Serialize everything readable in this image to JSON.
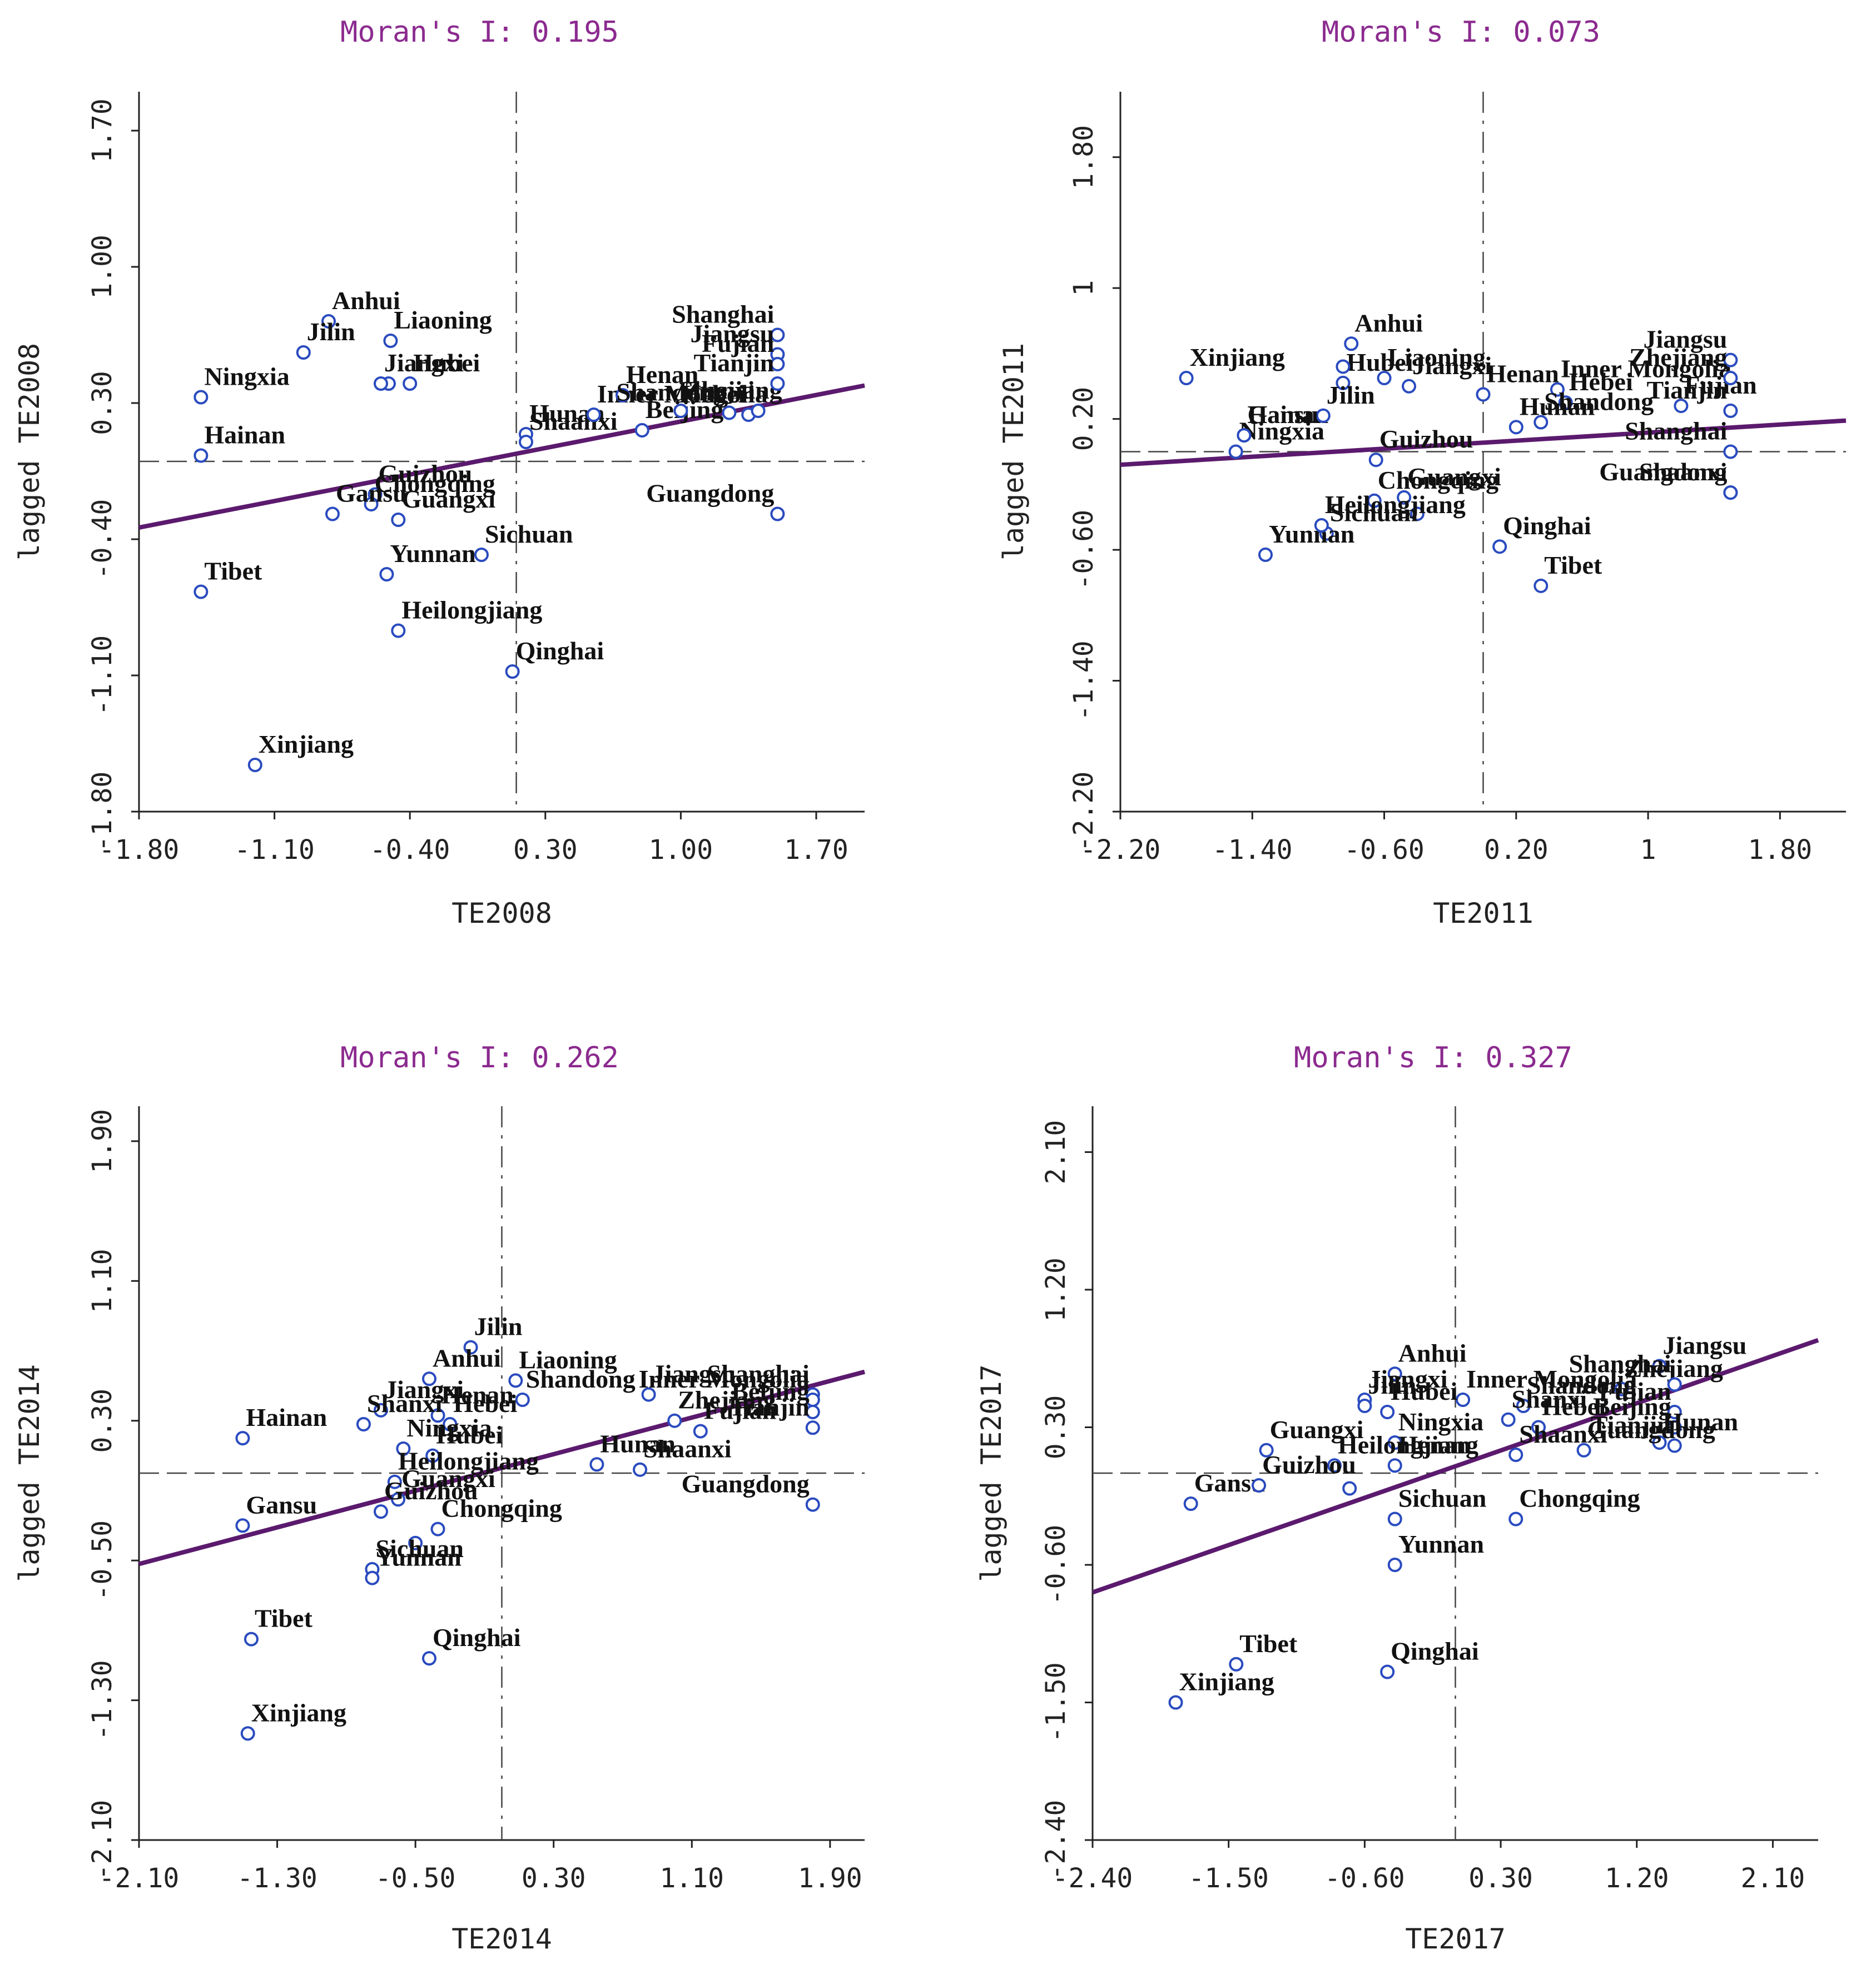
{
  "chart_data": [
    {
      "type": "scatter",
      "title": "Moran's I: 0.195",
      "xlabel": "TE2008",
      "ylabel": "lagged TE2008",
      "xlim": [
        -1.8,
        1.95
      ],
      "ylim": [
        -1.8,
        1.9
      ],
      "xticks": [
        "-1.80",
        "-1.10",
        "-0.40",
        "0.30",
        "1.00",
        "1.70"
      ],
      "yticks": [
        "-1.80",
        "-1.10",
        "-0.40",
        "0.30",
        "1.00",
        "1.70"
      ],
      "mean_x": 0.15,
      "mean_y": 0.0,
      "fit": [
        [
          -1.8,
          -0.34
        ],
        [
          1.95,
          0.39
        ]
      ],
      "points": [
        {
          "name": "Anhui",
          "x": -0.82,
          "y": 0.72
        },
        {
          "name": "Jilin",
          "x": -0.95,
          "y": 0.56
        },
        {
          "name": "Liaoning",
          "x": -0.5,
          "y": 0.62
        },
        {
          "name": "Hubei",
          "x": -0.4,
          "y": 0.4
        },
        {
          "name": "",
          "x": -0.51,
          "y": 0.4
        },
        {
          "name": "Ningxia",
          "x": -1.48,
          "y": 0.33
        },
        {
          "name": "Jiangxi",
          "x": -0.55,
          "y": 0.4
        },
        {
          "name": "Hainan",
          "x": -1.48,
          "y": 0.03
        },
        {
          "name": "Hunan",
          "x": 0.2,
          "y": 0.14
        },
        {
          "name": "Shaanxi",
          "x": 0.2,
          "y": 0.1
        },
        {
          "name": "Inner Mongolia",
          "x": 0.55,
          "y": 0.24
        },
        {
          "name": "Henan",
          "x": 0.7,
          "y": 0.34
        },
        {
          "name": "Beijing",
          "x": 0.8,
          "y": 0.16
        },
        {
          "name": "Zhejiang",
          "x": 1.0,
          "y": 0.26
        },
        {
          "name": "Shandong",
          "x": 1.25,
          "y": 0.25
        },
        {
          "name": "Hebei",
          "x": 1.35,
          "y": 0.24
        },
        {
          "name": "Shanxi",
          "x": 1.4,
          "y": 0.26
        },
        {
          "name": "Shanghai",
          "x": 1.5,
          "y": 0.65
        },
        {
          "name": "Jiangsu",
          "x": 1.5,
          "y": 0.55
        },
        {
          "name": "Fujian",
          "x": 1.5,
          "y": 0.5
        },
        {
          "name": "Tianjin",
          "x": 1.5,
          "y": 0.4
        },
        {
          "name": "Guangdong",
          "x": 1.5,
          "y": -0.27
        },
        {
          "name": "Guizhou",
          "x": -0.58,
          "y": -0.17
        },
        {
          "name": "Chongqing",
          "x": -0.6,
          "y": -0.22
        },
        {
          "name": "Gansu",
          "x": -0.8,
          "y": -0.27
        },
        {
          "name": "Guangxi",
          "x": -0.46,
          "y": -0.3
        },
        {
          "name": "Sichuan",
          "x": -0.03,
          "y": -0.48
        },
        {
          "name": "Yunnan",
          "x": -0.52,
          "y": -0.58
        },
        {
          "name": "Tibet",
          "x": -1.48,
          "y": -0.67
        },
        {
          "name": "Heilongjiang",
          "x": -0.46,
          "y": -0.87
        },
        {
          "name": "Qinghai",
          "x": 0.13,
          "y": -1.08
        },
        {
          "name": "Xinjiang",
          "x": -1.2,
          "y": -1.56
        }
      ]
    },
    {
      "type": "scatter",
      "title": "Moran's I: 0.073",
      "xlabel": "TE2011",
      "ylabel": "lagged TE2011",
      "xlim": [
        -2.2,
        2.2
      ],
      "ylim": [
        -2.2,
        2.2
      ],
      "xticks": [
        "-2.20",
        "-1.40",
        "-0.60",
        "0.20",
        "1",
        "1.80"
      ],
      "yticks": [
        "-2.20",
        "-1.40",
        "-0.60",
        "0.20",
        "1",
        "1.80"
      ],
      "mean_x": 0.0,
      "mean_y": 0.0,
      "fit": [
        [
          -2.2,
          -0.08
        ],
        [
          2.2,
          0.19
        ]
      ],
      "points": [
        {
          "name": "Anhui",
          "x": -0.8,
          "y": 0.66
        },
        {
          "name": "Liaoning",
          "x": -0.6,
          "y": 0.45
        },
        {
          "name": "Xinjiang",
          "x": -1.8,
          "y": 0.45
        },
        {
          "name": "Hubei",
          "x": -0.85,
          "y": 0.42
        },
        {
          "name": "",
          "x": -0.85,
          "y": 0.52
        },
        {
          "name": "Hainan",
          "x": -1.45,
          "y": 0.1
        },
        {
          "name": "Jilin",
          "x": -0.97,
          "y": 0.22
        },
        {
          "name": "Ningxia",
          "x": -1.5,
          "y": 0.0
        },
        {
          "name": "Jiangxi",
          "x": -0.45,
          "y": 0.4
        },
        {
          "name": "Henan",
          "x": 0.0,
          "y": 0.35
        },
        {
          "name": "Inner Mongolia",
          "x": 0.45,
          "y": 0.38
        },
        {
          "name": "Hebei",
          "x": 0.5,
          "y": 0.3
        },
        {
          "name": "Shandong",
          "x": 0.35,
          "y": 0.18
        },
        {
          "name": "Hunan",
          "x": 0.2,
          "y": 0.15
        },
        {
          "name": "Fujian",
          "x": 1.2,
          "y": 0.28
        },
        {
          "name": "Jiangsu",
          "x": 1.5,
          "y": 0.56
        },
        {
          "name": "Zhejiang",
          "x": 1.5,
          "y": 0.45
        },
        {
          "name": "Tianjin",
          "x": 1.5,
          "y": 0.25
        },
        {
          "name": "Shanghai",
          "x": 1.5,
          "y": 0.0
        },
        {
          "name": "Shaanxi",
          "x": 1.5,
          "y": -0.25
        },
        {
          "name": "Guangdong",
          "x": 1.5,
          "y": -0.25
        },
        {
          "name": "Gansu",
          "x": -1.45,
          "y": 0.1
        },
        {
          "name": "Guizhou",
          "x": -0.65,
          "y": -0.05
        },
        {
          "name": "Guangxi",
          "x": -0.48,
          "y": -0.28
        },
        {
          "name": "Chongqing",
          "x": -0.66,
          "y": -0.3
        },
        {
          "name": "",
          "x": -0.4,
          "y": -0.38
        },
        {
          "name": "Sichuan",
          "x": -0.95,
          "y": -0.5
        },
        {
          "name": "Yunnan",
          "x": -1.32,
          "y": -0.63
        },
        {
          "name": "Heilongjiang",
          "x": -0.98,
          "y": -0.45
        },
        {
          "name": "Qinghai",
          "x": 0.1,
          "y": -0.58
        },
        {
          "name": "Tibet",
          "x": 0.35,
          "y": -0.82
        }
      ]
    },
    {
      "type": "scatter",
      "title": "Moran's I: 0.262",
      "xlabel": "TE2014",
      "ylabel": "lagged TE2014",
      "xlim": [
        -2.1,
        2.1
      ],
      "ylim": [
        -2.1,
        2.1
      ],
      "xticks": [
        "-2.10",
        "-1.30",
        "-0.50",
        "0.30",
        "1.10",
        "1.90"
      ],
      "yticks": [
        "-2.10",
        "-1.30",
        "-0.50",
        "0.30",
        "1.10",
        "1.90"
      ],
      "mean_x": 0.0,
      "mean_y": 0.0,
      "fit": [
        [
          -2.1,
          -0.52
        ],
        [
          2.1,
          0.58
        ]
      ],
      "points": [
        {
          "name": "Jilin",
          "x": -0.18,
          "y": 0.72
        },
        {
          "name": "Anhui",
          "x": -0.42,
          "y": 0.54
        },
        {
          "name": "Liaoning",
          "x": 0.08,
          "y": 0.53
        },
        {
          "name": "Jiangsu",
          "x": 0.85,
          "y": 0.45
        },
        {
          "name": "Shanghai",
          "x": 1.8,
          "y": 0.45
        },
        {
          "name": "Jiangxi",
          "x": -0.7,
          "y": 0.36
        },
        {
          "name": "Henan",
          "x": -0.37,
          "y": 0.33
        },
        {
          "name": "Shandong",
          "x": 0.12,
          "y": 0.42
        },
        {
          "name": "Zhejiang",
          "x": 1.0,
          "y": 0.3
        },
        {
          "name": "Inner Mongolia",
          "x": 1.8,
          "y": 0.42
        },
        {
          "name": "Shanxi",
          "x": -0.8,
          "y": 0.28
        },
        {
          "name": "Hebei",
          "x": -0.3,
          "y": 0.28
        },
        {
          "name": "Beijing",
          "x": 1.8,
          "y": 0.35
        },
        {
          "name": "Hainan",
          "x": -1.5,
          "y": 0.2
        },
        {
          "name": "Ningxia",
          "x": -0.57,
          "y": 0.14
        },
        {
          "name": "Hubei",
          "x": -0.4,
          "y": 0.1
        },
        {
          "name": "Fujian",
          "x": 1.15,
          "y": 0.24
        },
        {
          "name": "Tianjin",
          "x": 1.8,
          "y": 0.26
        },
        {
          "name": "Hunan",
          "x": 0.55,
          "y": 0.05
        },
        {
          "name": "Shaanxi",
          "x": 0.8,
          "y": 0.02
        },
        {
          "name": "Heilongjiang",
          "x": -0.62,
          "y": -0.05
        },
        {
          "name": "Guangxi",
          "x": -0.6,
          "y": -0.15
        },
        {
          "name": "Gansu",
          "x": -1.5,
          "y": -0.3
        },
        {
          "name": "Guizhou",
          "x": -0.7,
          "y": -0.22
        },
        {
          "name": "Chongqing",
          "x": -0.37,
          "y": -0.32
        },
        {
          "name": "",
          "x": -0.5,
          "y": -0.4
        },
        {
          "name": "Guangdong",
          "x": 1.8,
          "y": -0.18
        },
        {
          "name": "Sichuan",
          "x": -0.75,
          "y": -0.55
        },
        {
          "name": "Yunnan",
          "x": -0.75,
          "y": -0.6
        },
        {
          "name": "Tibet",
          "x": -1.45,
          "y": -0.95
        },
        {
          "name": "Qinghai",
          "x": -0.42,
          "y": -1.06
        },
        {
          "name": "Xinjiang",
          "x": -1.47,
          "y": -1.49
        }
      ]
    },
    {
      "type": "scatter",
      "title": "Moran's I: 0.327",
      "xlabel": "TE2017",
      "ylabel": "lagged TE2017",
      "xlim": [
        -2.4,
        2.4
      ],
      "ylim": [
        -2.4,
        2.4
      ],
      "xticks": [
        "-2.40",
        "-1.50",
        "-0.60",
        "0.30",
        "1.20",
        "2.10"
      ],
      "yticks": [
        "-2.40",
        "-1.50",
        "-0.60",
        "0.30",
        "1.20",
        "2.10"
      ],
      "mean_x": 0.0,
      "mean_y": 0.0,
      "fit": [
        [
          -2.4,
          -0.78
        ],
        [
          2.4,
          0.87
        ]
      ],
      "points": [
        {
          "name": "Jiangsu",
          "x": 1.35,
          "y": 0.7
        },
        {
          "name": "Anhui",
          "x": -0.4,
          "y": 0.65
        },
        {
          "name": "Inner Mongolia",
          "x": 0.05,
          "y": 0.48
        },
        {
          "name": "Jiangxi",
          "x": -0.6,
          "y": 0.48
        },
        {
          "name": "Zhejiang",
          "x": 1.1,
          "y": 0.55
        },
        {
          "name": "Shanghai",
          "x": 1.45,
          "y": 0.58
        },
        {
          "name": "Shandong",
          "x": 0.45,
          "y": 0.44
        },
        {
          "name": "Jilin",
          "x": -0.6,
          "y": 0.44
        },
        {
          "name": "Hubei",
          "x": -0.45,
          "y": 0.4
        },
        {
          "name": "Fujian",
          "x": 1.45,
          "y": 0.4
        },
        {
          "name": "Shanxi",
          "x": 0.35,
          "y": 0.35
        },
        {
          "name": "Hebei",
          "x": 0.55,
          "y": 0.3
        },
        {
          "name": "Beijing",
          "x": 1.45,
          "y": 0.3
        },
        {
          "name": "Guangxi",
          "x": -1.25,
          "y": 0.15
        },
        {
          "name": "Ningxia",
          "x": -0.4,
          "y": 0.2
        },
        {
          "name": "Hunan",
          "x": 1.35,
          "y": 0.2
        },
        {
          "name": "Tianjin",
          "x": 1.45,
          "y": 0.18
        },
        {
          "name": "Heilongjiang",
          "x": -0.8,
          "y": 0.05
        },
        {
          "name": "Henan",
          "x": -0.4,
          "y": 0.05
        },
        {
          "name": "Shaanxi",
          "x": 0.4,
          "y": 0.12
        },
        {
          "name": "Guangdong",
          "x": 0.85,
          "y": 0.15
        },
        {
          "name": "Gansu",
          "x": -1.75,
          "y": -0.2
        },
        {
          "name": "Guizhou",
          "x": -1.3,
          "y": -0.08
        },
        {
          "name": "",
          "x": -0.7,
          "y": -0.1
        },
        {
          "name": "Sichuan",
          "x": -0.4,
          "y": -0.3
        },
        {
          "name": "Chongqing",
          "x": 0.4,
          "y": -0.3
        },
        {
          "name": "Yunnan",
          "x": -0.4,
          "y": -0.6
        },
        {
          "name": "Tibet",
          "x": -1.45,
          "y": -1.25
        },
        {
          "name": "Qinghai",
          "x": -0.45,
          "y": -1.3
        },
        {
          "name": "Xinjiang",
          "x": -1.85,
          "y": -1.5
        }
      ]
    }
  ]
}
